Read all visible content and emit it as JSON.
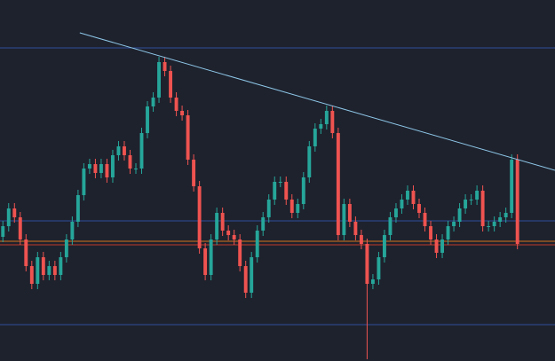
{
  "chart_data": {
    "type": "candlestick",
    "background": "#1e222d",
    "up_color": "#26a69a",
    "down_color": "#ef5350",
    "xlim": [
      0,
      96
    ],
    "ylim": [
      0,
      407
    ],
    "open": [
      140,
      152,
      172,
      162,
      137,
      107,
      87,
      117,
      97,
      107,
      97,
      117,
      137,
      157,
      187,
      217,
      222,
      212,
      222,
      207,
      232,
      242,
      232,
      217,
      217,
      257,
      287,
      297,
      337,
      327,
      297,
      282,
      277,
      227,
      197,
      127,
      97,
      137,
      167,
      147,
      142,
      137,
      107,
      77,
      117,
      147,
      162,
      182,
      202,
      202,
      182,
      167,
      177,
      207,
      242,
      262,
      267,
      282,
      257,
      142,
      177,
      157,
      142,
      132,
      87,
      92,
      117,
      142,
      162,
      172,
      182,
      192,
      177,
      167,
      152,
      137,
      122,
      137,
      152,
      157,
      172,
      182,
      182,
      192,
      152,
      152,
      157,
      162,
      167,
      227
    ],
    "high": [
      158,
      178,
      178,
      168,
      143,
      113,
      123,
      123,
      113,
      113,
      123,
      143,
      163,
      193,
      223,
      228,
      228,
      228,
      228,
      238,
      248,
      248,
      238,
      223,
      263,
      293,
      303,
      343,
      343,
      333,
      303,
      288,
      283,
      233,
      203,
      133,
      143,
      173,
      173,
      153,
      148,
      143,
      113,
      123,
      153,
      168,
      188,
      208,
      208,
      208,
      188,
      183,
      213,
      248,
      268,
      273,
      288,
      288,
      263,
      183,
      183,
      163,
      148,
      138,
      98,
      123,
      148,
      168,
      178,
      188,
      198,
      198,
      183,
      173,
      158,
      143,
      143,
      158,
      163,
      178,
      188,
      188,
      198,
      198,
      158,
      163,
      168,
      173,
      233,
      233
    ],
    "low": [
      134,
      146,
      156,
      131,
      101,
      81,
      81,
      91,
      91,
      91,
      91,
      111,
      131,
      151,
      181,
      211,
      206,
      206,
      201,
      201,
      226,
      226,
      211,
      211,
      211,
      251,
      281,
      291,
      321,
      291,
      276,
      271,
      221,
      191,
      121,
      91,
      91,
      131,
      141,
      136,
      131,
      101,
      71,
      71,
      111,
      141,
      156,
      176,
      196,
      176,
      161,
      161,
      171,
      201,
      236,
      256,
      261,
      251,
      136,
      136,
      151,
      136,
      126,
      2,
      81,
      86,
      111,
      136,
      156,
      166,
      176,
      171,
      161,
      146,
      131,
      116,
      116,
      131,
      146,
      151,
      166,
      176,
      176,
      146,
      146,
      146,
      151,
      156,
      161,
      126
    ],
    "close": [
      152,
      172,
      162,
      137,
      107,
      87,
      117,
      97,
      107,
      97,
      117,
      137,
      157,
      187,
      217,
      222,
      212,
      222,
      207,
      232,
      242,
      232,
      217,
      217,
      257,
      287,
      297,
      337,
      327,
      297,
      282,
      277,
      227,
      197,
      127,
      97,
      137,
      167,
      147,
      142,
      137,
      107,
      77,
      117,
      147,
      162,
      182,
      202,
      202,
      182,
      167,
      177,
      207,
      242,
      262,
      267,
      282,
      257,
      142,
      177,
      157,
      142,
      132,
      87,
      92,
      117,
      142,
      162,
      172,
      182,
      192,
      177,
      167,
      152,
      137,
      122,
      137,
      152,
      157,
      172,
      182,
      182,
      192,
      152,
      152,
      157,
      162,
      167,
      227,
      132
    ],
    "levels": [
      {
        "value": 353,
        "color": "#2e4d9c"
      },
      {
        "value": 158,
        "color": "#2e4d9c"
      },
      {
        "value": 135,
        "color": "#d6741e"
      },
      {
        "value": 131,
        "color": "#c0392b"
      },
      {
        "value": 41,
        "color": "#2e4d9c"
      }
    ],
    "trendline": {
      "x": [
        13.8,
        96
      ],
      "y": [
        370,
        215
      ],
      "color": "#8ec7e8"
    }
  }
}
